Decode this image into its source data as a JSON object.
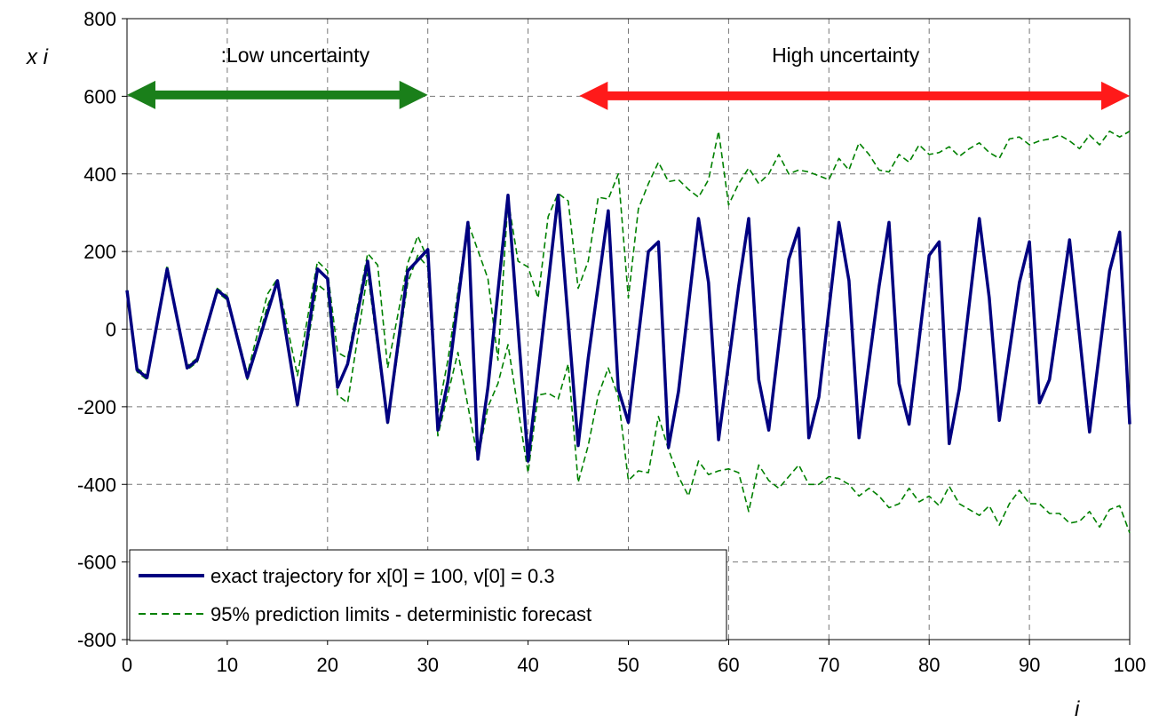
{
  "chart_data": {
    "type": "line",
    "title": "",
    "xlabel": "i",
    "ylabel": "x i",
    "xlim": [
      0,
      100
    ],
    "ylim": [
      -800,
      800
    ],
    "x_ticks": [
      "0",
      "10",
      "20",
      "30",
      "40",
      "50",
      "60",
      "70",
      "80",
      "90",
      "100"
    ],
    "y_ticks": [
      "800",
      "600",
      "400",
      "200",
      "0",
      "-200",
      "-400",
      "-600",
      "-800"
    ],
    "grid": true,
    "legend_position": "bottom-left",
    "colors": {
      "exact": "#000080",
      "limits": "#008000",
      "low_arrow": "#1a7f1a",
      "high_arrow": "#ff1a1a"
    },
    "annotations": [
      {
        "text": ":Low uncertainty",
        "x_start": 0,
        "x_end": 30,
        "y": 640
      },
      {
        "text": "High uncertainty",
        "x_start": 46,
        "x_end": 100,
        "y": 640
      }
    ],
    "series": [
      {
        "name": "exact trajectory for x[0] = 100, v[0] = 0.3",
        "style": "solid",
        "points": [
          [
            0,
            100
          ],
          [
            1,
            -105
          ],
          [
            2,
            -125
          ],
          [
            4,
            155
          ],
          [
            6,
            -100
          ],
          [
            7,
            -80
          ],
          [
            9,
            100
          ],
          [
            10,
            80
          ],
          [
            12,
            -125
          ],
          [
            15,
            125
          ],
          [
            17,
            -195
          ],
          [
            19,
            155
          ],
          [
            20,
            130
          ],
          [
            21,
            -150
          ],
          [
            22,
            -90
          ],
          [
            24,
            175
          ],
          [
            26,
            -240
          ],
          [
            28,
            150
          ],
          [
            30,
            205
          ],
          [
            31,
            -260
          ],
          [
            32,
            -135
          ],
          [
            34,
            275
          ],
          [
            35,
            -335
          ],
          [
            36,
            -150
          ],
          [
            38,
            345
          ],
          [
            40,
            -340
          ],
          [
            43,
            345
          ],
          [
            45,
            -300
          ],
          [
            46,
            -75
          ],
          [
            48,
            305
          ],
          [
            49,
            -155
          ],
          [
            50,
            -240
          ],
          [
            52,
            200
          ],
          [
            53,
            225
          ],
          [
            54,
            -305
          ],
          [
            55,
            -160
          ],
          [
            57,
            285
          ],
          [
            58,
            120
          ],
          [
            59,
            -285
          ],
          [
            61,
            110
          ],
          [
            62,
            285
          ],
          [
            63,
            -130
          ],
          [
            64,
            -260
          ],
          [
            66,
            180
          ],
          [
            67,
            260
          ],
          [
            68,
            -280
          ],
          [
            69,
            -175
          ],
          [
            71,
            275
          ],
          [
            72,
            125
          ],
          [
            73,
            -280
          ],
          [
            75,
            110
          ],
          [
            76,
            275
          ],
          [
            77,
            -140
          ],
          [
            78,
            -245
          ],
          [
            80,
            190
          ],
          [
            81,
            225
          ],
          [
            82,
            -295
          ],
          [
            83,
            -155
          ],
          [
            85,
            285
          ],
          [
            86,
            80
          ],
          [
            87,
            -235
          ],
          [
            89,
            120
          ],
          [
            90,
            225
          ],
          [
            91,
            -190
          ],
          [
            92,
            -130
          ],
          [
            94,
            230
          ],
          [
            96,
            -265
          ],
          [
            98,
            150
          ],
          [
            99,
            250
          ],
          [
            100,
            -245
          ]
        ]
      },
      {
        "name": "95% prediction limits - deterministic forecast",
        "style": "dashed",
        "points": [
          [
            0,
            100
          ],
          [
            1,
            -100
          ],
          [
            2,
            -120
          ],
          [
            4,
            165
          ],
          [
            6,
            -95
          ],
          [
            7,
            -75
          ],
          [
            9,
            105
          ],
          [
            10,
            85
          ],
          [
            12,
            -115
          ],
          [
            14,
            90
          ],
          [
            15,
            130
          ],
          [
            17,
            -120
          ],
          [
            19,
            175
          ],
          [
            20,
            150
          ],
          [
            21,
            -60
          ],
          [
            22,
            -75
          ],
          [
            24,
            195
          ],
          [
            25,
            165
          ],
          [
            26,
            -100
          ],
          [
            28,
            170
          ],
          [
            29,
            240
          ],
          [
            30,
            180
          ],
          [
            31,
            -215
          ],
          [
            32,
            -80
          ],
          [
            34,
            275
          ],
          [
            36,
            130
          ],
          [
            37,
            -80
          ],
          [
            38,
            335
          ],
          [
            39,
            175
          ],
          [
            40,
            160
          ],
          [
            41,
            80
          ],
          [
            42,
            290
          ],
          [
            43,
            350
          ],
          [
            44,
            330
          ],
          [
            45,
            105
          ],
          [
            46,
            175
          ],
          [
            47,
            340
          ],
          [
            48,
            335
          ],
          [
            49,
            400
          ],
          [
            50,
            80
          ],
          [
            51,
            310
          ],
          [
            52,
            375
          ],
          [
            53,
            430
          ],
          [
            54,
            380
          ],
          [
            55,
            385
          ],
          [
            56,
            360
          ],
          [
            57,
            340
          ],
          [
            58,
            385
          ],
          [
            59,
            510
          ],
          [
            60,
            320
          ],
          [
            61,
            375
          ],
          [
            62,
            415
          ],
          [
            63,
            375
          ],
          [
            64,
            400
          ],
          [
            65,
            450
          ],
          [
            66,
            400
          ],
          [
            67,
            410
          ],
          [
            68,
            405
          ],
          [
            69,
            395
          ],
          [
            70,
            385
          ],
          [
            71,
            440
          ],
          [
            72,
            410
          ],
          [
            73,
            480
          ],
          [
            74,
            450
          ],
          [
            75,
            410
          ],
          [
            76,
            405
          ],
          [
            77,
            450
          ],
          [
            78,
            430
          ],
          [
            79,
            475
          ],
          [
            80,
            450
          ],
          [
            81,
            455
          ],
          [
            82,
            470
          ],
          [
            83,
            445
          ],
          [
            84,
            465
          ],
          [
            85,
            480
          ],
          [
            86,
            455
          ],
          [
            87,
            440
          ],
          [
            88,
            490
          ],
          [
            89,
            495
          ],
          [
            90,
            475
          ],
          [
            91,
            485
          ],
          [
            92,
            490
          ],
          [
            93,
            500
          ],
          [
            94,
            485
          ],
          [
            95,
            465
          ],
          [
            96,
            500
          ],
          [
            97,
            475
          ],
          [
            98,
            510
          ],
          [
            99,
            495
          ],
          [
            100,
            510
          ]
        ]
      },
      {
        "name": "",
        "style": "dashed",
        "points": [
          [
            0,
            100
          ],
          [
            1,
            -110
          ],
          [
            2,
            -130
          ],
          [
            4,
            155
          ],
          [
            6,
            -105
          ],
          [
            7,
            -85
          ],
          [
            9,
            95
          ],
          [
            10,
            75
          ],
          [
            12,
            -130
          ],
          [
            14,
            60
          ],
          [
            15,
            120
          ],
          [
            17,
            -195
          ],
          [
            19,
            115
          ],
          [
            20,
            95
          ],
          [
            21,
            -170
          ],
          [
            22,
            -190
          ],
          [
            24,
            145
          ],
          [
            26,
            -245
          ],
          [
            28,
            120
          ],
          [
            29,
            190
          ],
          [
            30,
            160
          ],
          [
            31,
            -275
          ],
          [
            33,
            -60
          ],
          [
            35,
            -335
          ],
          [
            36,
            -200
          ],
          [
            37,
            -140
          ],
          [
            38,
            -40
          ],
          [
            40,
            -370
          ],
          [
            41,
            -170
          ],
          [
            42,
            -165
          ],
          [
            43,
            -180
          ],
          [
            44,
            -90
          ],
          [
            45,
            -395
          ],
          [
            46,
            -300
          ],
          [
            47,
            -170
          ],
          [
            48,
            -100
          ],
          [
            49,
            -175
          ],
          [
            50,
            -390
          ],
          [
            51,
            -365
          ],
          [
            52,
            -370
          ],
          [
            53,
            -225
          ],
          [
            54,
            -310
          ],
          [
            55,
            -380
          ],
          [
            56,
            -430
          ],
          [
            57,
            -340
          ],
          [
            58,
            -375
          ],
          [
            59,
            -365
          ],
          [
            60,
            -360
          ],
          [
            61,
            -370
          ],
          [
            62,
            -470
          ],
          [
            63,
            -350
          ],
          [
            64,
            -390
          ],
          [
            65,
            -410
          ],
          [
            66,
            -380
          ],
          [
            67,
            -350
          ],
          [
            68,
            -400
          ],
          [
            69,
            -400
          ],
          [
            70,
            -380
          ],
          [
            71,
            -385
          ],
          [
            72,
            -400
          ],
          [
            73,
            -430
          ],
          [
            74,
            -410
          ],
          [
            75,
            -430
          ],
          [
            76,
            -460
          ],
          [
            77,
            -450
          ],
          [
            78,
            -410
          ],
          [
            79,
            -445
          ],
          [
            80,
            -430
          ],
          [
            81,
            -455
          ],
          [
            82,
            -405
          ],
          [
            83,
            -450
          ],
          [
            84,
            -465
          ],
          [
            85,
            -480
          ],
          [
            86,
            -455
          ],
          [
            87,
            -505
          ],
          [
            88,
            -450
          ],
          [
            89,
            -415
          ],
          [
            90,
            -450
          ],
          [
            91,
            -450
          ],
          [
            92,
            -475
          ],
          [
            93,
            -475
          ],
          [
            94,
            -500
          ],
          [
            95,
            -495
          ],
          [
            96,
            -470
          ],
          [
            97,
            -510
          ],
          [
            98,
            -465
          ],
          [
            99,
            -455
          ],
          [
            100,
            -525
          ]
        ]
      }
    ]
  }
}
